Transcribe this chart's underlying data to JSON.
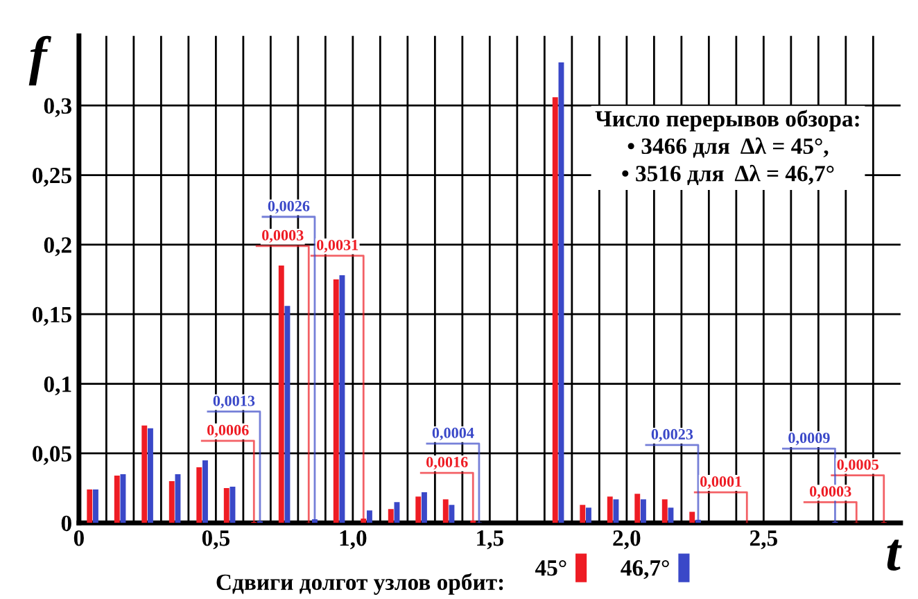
{
  "chart_data": {
    "type": "histogram",
    "xlabel": "t",
    "ylabel": "f",
    "legend_title": "Сдвиги долгот узлов орбит:",
    "annotations": [
      "Число перерывов обзора:\n• 3466 для  Δλ = 45°,\n• 3516 для  Δλ = 46,7°"
    ],
    "bins": [
      0,
      0.1,
      0.2,
      0.3,
      0.4,
      0.5,
      0.6,
      0.7,
      0.8,
      0.9,
      1.0,
      1.1,
      1.2,
      1.3,
      1.4,
      1.5,
      1.6,
      1.7,
      1.8,
      1.9,
      2.0,
      2.1,
      2.2,
      2.3,
      2.4,
      2.5,
      2.6,
      2.7,
      2.8,
      2.9,
      3.0
    ],
    "series": [
      {
        "name": "45°",
        "color": "#ee1c24",
        "values": [
          0.024,
          0.034,
          0.07,
          0.03,
          0.04,
          0.025,
          0.0006,
          0.185,
          0.0003,
          0.175,
          0.0031,
          0.01,
          0.019,
          0.017,
          0.0016,
          0,
          0,
          0.306,
          0.013,
          0.019,
          0.021,
          0.017,
          0.008,
          0,
          0.0001,
          0,
          0,
          0,
          0.0003,
          0.0005
        ],
        "value_labels": [
          null,
          null,
          null,
          null,
          null,
          null,
          "0,0006",
          null,
          "0,0003",
          null,
          "0,0031",
          null,
          null,
          null,
          "0,0016",
          null,
          null,
          null,
          null,
          null,
          null,
          null,
          null,
          null,
          "0,0001",
          null,
          null,
          null,
          "0,0003",
          "0,0005"
        ]
      },
      {
        "name": "46,7°",
        "color": "#3a48c8",
        "values": [
          0.024,
          0.035,
          0.068,
          0.035,
          0.045,
          0.026,
          0.0013,
          0.156,
          0.0026,
          0.178,
          0.009,
          0.015,
          0.022,
          0.013,
          0.0004,
          0,
          0,
          0.331,
          0.011,
          0.017,
          0.017,
          0.011,
          0.0023,
          0,
          0,
          0,
          0,
          0.0009,
          0,
          0
        ],
        "value_labels": [
          null,
          null,
          null,
          null,
          null,
          null,
          "0,0013",
          null,
          "0,0026",
          null,
          null,
          null,
          null,
          null,
          "0,0004",
          null,
          null,
          null,
          null,
          null,
          null,
          null,
          "0,0023",
          null,
          null,
          null,
          null,
          "0,0009",
          null,
          null
        ]
      }
    ],
    "xlim": [
      0,
      3.0
    ],
    "ylim": [
      0,
      0.35
    ],
    "xticks": [
      0,
      {
        "value": 0.1,
        "label": null
      },
      {
        "value": 0.2,
        "label": null
      },
      {
        "value": 0.3,
        "label": null
      },
      {
        "value": 0.4,
        "label": null
      },
      {
        "value": 0.5,
        "label": "0,5"
      },
      {
        "value": 0.6,
        "label": null
      },
      {
        "value": 0.7,
        "label": null
      },
      {
        "value": 0.8,
        "label": null
      },
      {
        "value": 0.9,
        "label": null
      },
      {
        "value": 1.0,
        "label": "1,0"
      },
      {
        "value": 1.1,
        "label": null
      },
      {
        "value": 1.2,
        "label": null
      },
      {
        "value": 1.3,
        "label": null
      },
      {
        "value": 1.4,
        "label": null
      },
      {
        "value": 1.5,
        "label": "1,5"
      },
      {
        "value": 1.6,
        "label": null
      },
      {
        "value": 1.7,
        "label": null
      },
      {
        "value": 1.8,
        "label": null
      },
      {
        "value": 1.9,
        "label": null
      },
      {
        "value": 2.0,
        "label": "2,0"
      },
      {
        "value": 2.1,
        "label": null
      },
      {
        "value": 2.2,
        "label": null
      },
      {
        "value": 2.3,
        "label": null
      },
      {
        "value": 2.4,
        "label": null
      },
      {
        "value": 2.5,
        "label": "2,5"
      },
      {
        "value": 2.6,
        "label": null
      },
      {
        "value": 2.7,
        "label": null
      },
      {
        "value": 2.8,
        "label": null
      },
      {
        "value": 2.9,
        "label": null
      }
    ],
    "yticks": [
      0,
      {
        "value": 0.05,
        "label": "0,05"
      },
      {
        "value": 0.1,
        "label": "0,1"
      },
      {
        "value": 0.15,
        "label": "0,15"
      },
      {
        "value": 0.2,
        "label": "0,2"
      },
      {
        "value": 0.25,
        "label": "0,25"
      },
      {
        "value": 0.3,
        "label": "0,3"
      }
    ],
    "grid": true,
    "legend": "bottom"
  }
}
